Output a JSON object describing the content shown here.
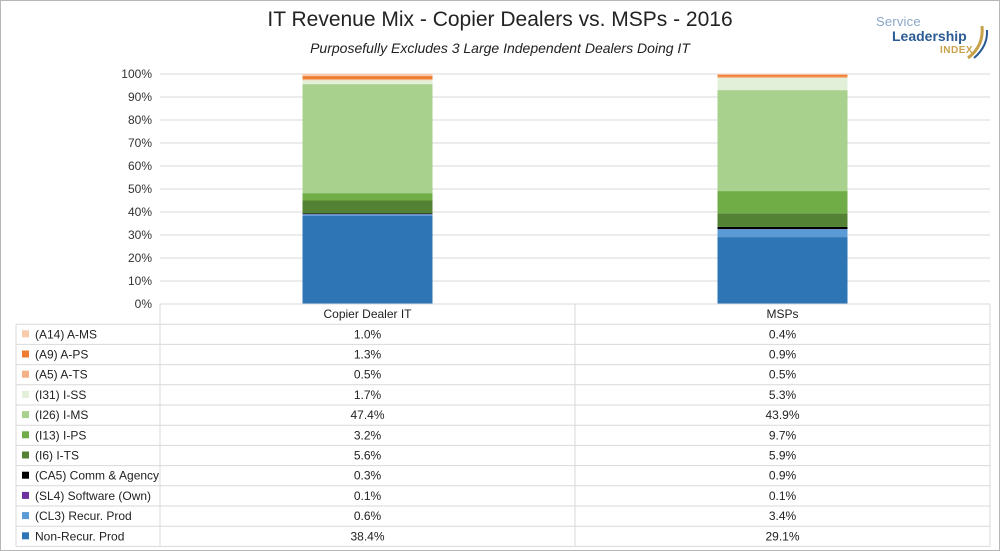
{
  "chart_data": {
    "type": "bar",
    "stacked": true,
    "title": "IT Revenue Mix - Copier Dealers vs. MSPs - 2016",
    "subtitle": "Purposefully Excludes 3 Large Independent Dealers Doing IT",
    "categories": [
      "Copier Dealer IT",
      "MSPs"
    ],
    "y_ticks": [
      "0%",
      "10%",
      "20%",
      "30%",
      "40%",
      "50%",
      "60%",
      "70%",
      "80%",
      "90%",
      "100%"
    ],
    "ylim": [
      0,
      100
    ],
    "grid": true,
    "legend": "data-table-below",
    "series": [
      {
        "name": "(A14) A-MS",
        "color": "#f8cbad",
        "values": [
          1.0,
          0.4
        ],
        "labels": [
          "1.0%",
          "0.4%"
        ]
      },
      {
        "name": "(A9) A-PS",
        "color": "#ed7d31",
        "values": [
          1.3,
          0.9
        ],
        "labels": [
          "1.3%",
          "0.9%"
        ]
      },
      {
        "name": "(A5) A-TS",
        "color": "#f4b183",
        "values": [
          0.5,
          0.5
        ],
        "labels": [
          "0.5%",
          "0.5%"
        ]
      },
      {
        "name": "(I31) I-SS",
        "color": "#e2efd9",
        "values": [
          1.7,
          5.3
        ],
        "labels": [
          "1.7%",
          "5.3%"
        ]
      },
      {
        "name": "(I26) I-MS",
        "color": "#a9d18e",
        "values": [
          47.4,
          43.9
        ],
        "labels": [
          "47.4%",
          "43.9%"
        ]
      },
      {
        "name": "(I13) I-PS",
        "color": "#70ad47",
        "values": [
          3.2,
          9.7
        ],
        "labels": [
          "3.2%",
          "9.7%"
        ]
      },
      {
        "name": "(I6) I-TS",
        "color": "#548235",
        "values": [
          5.6,
          5.9
        ],
        "labels": [
          "5.6%",
          "5.9%"
        ]
      },
      {
        "name": "(CA5) Comm & Agency",
        "color": "#000000",
        "values": [
          0.3,
          0.9
        ],
        "labels": [
          "0.3%",
          "0.9%"
        ]
      },
      {
        "name": "(SL4) Software (Own)",
        "color": "#7030a0",
        "values": [
          0.1,
          0.1
        ],
        "labels": [
          "0.1%",
          "0.1%"
        ]
      },
      {
        "name": "(CL3) Recur. Prod",
        "color": "#5b9bd5",
        "values": [
          0.6,
          3.4
        ],
        "labels": [
          "0.6%",
          "3.4%"
        ]
      },
      {
        "name": "Non-Recur. Prod",
        "color": "#2e75b6",
        "values": [
          38.4,
          29.1
        ],
        "labels": [
          "38.4%",
          "29.1%"
        ]
      }
    ]
  },
  "logo": {
    "line1": "Service",
    "line2": "Leadership",
    "line3": "INDEX"
  }
}
